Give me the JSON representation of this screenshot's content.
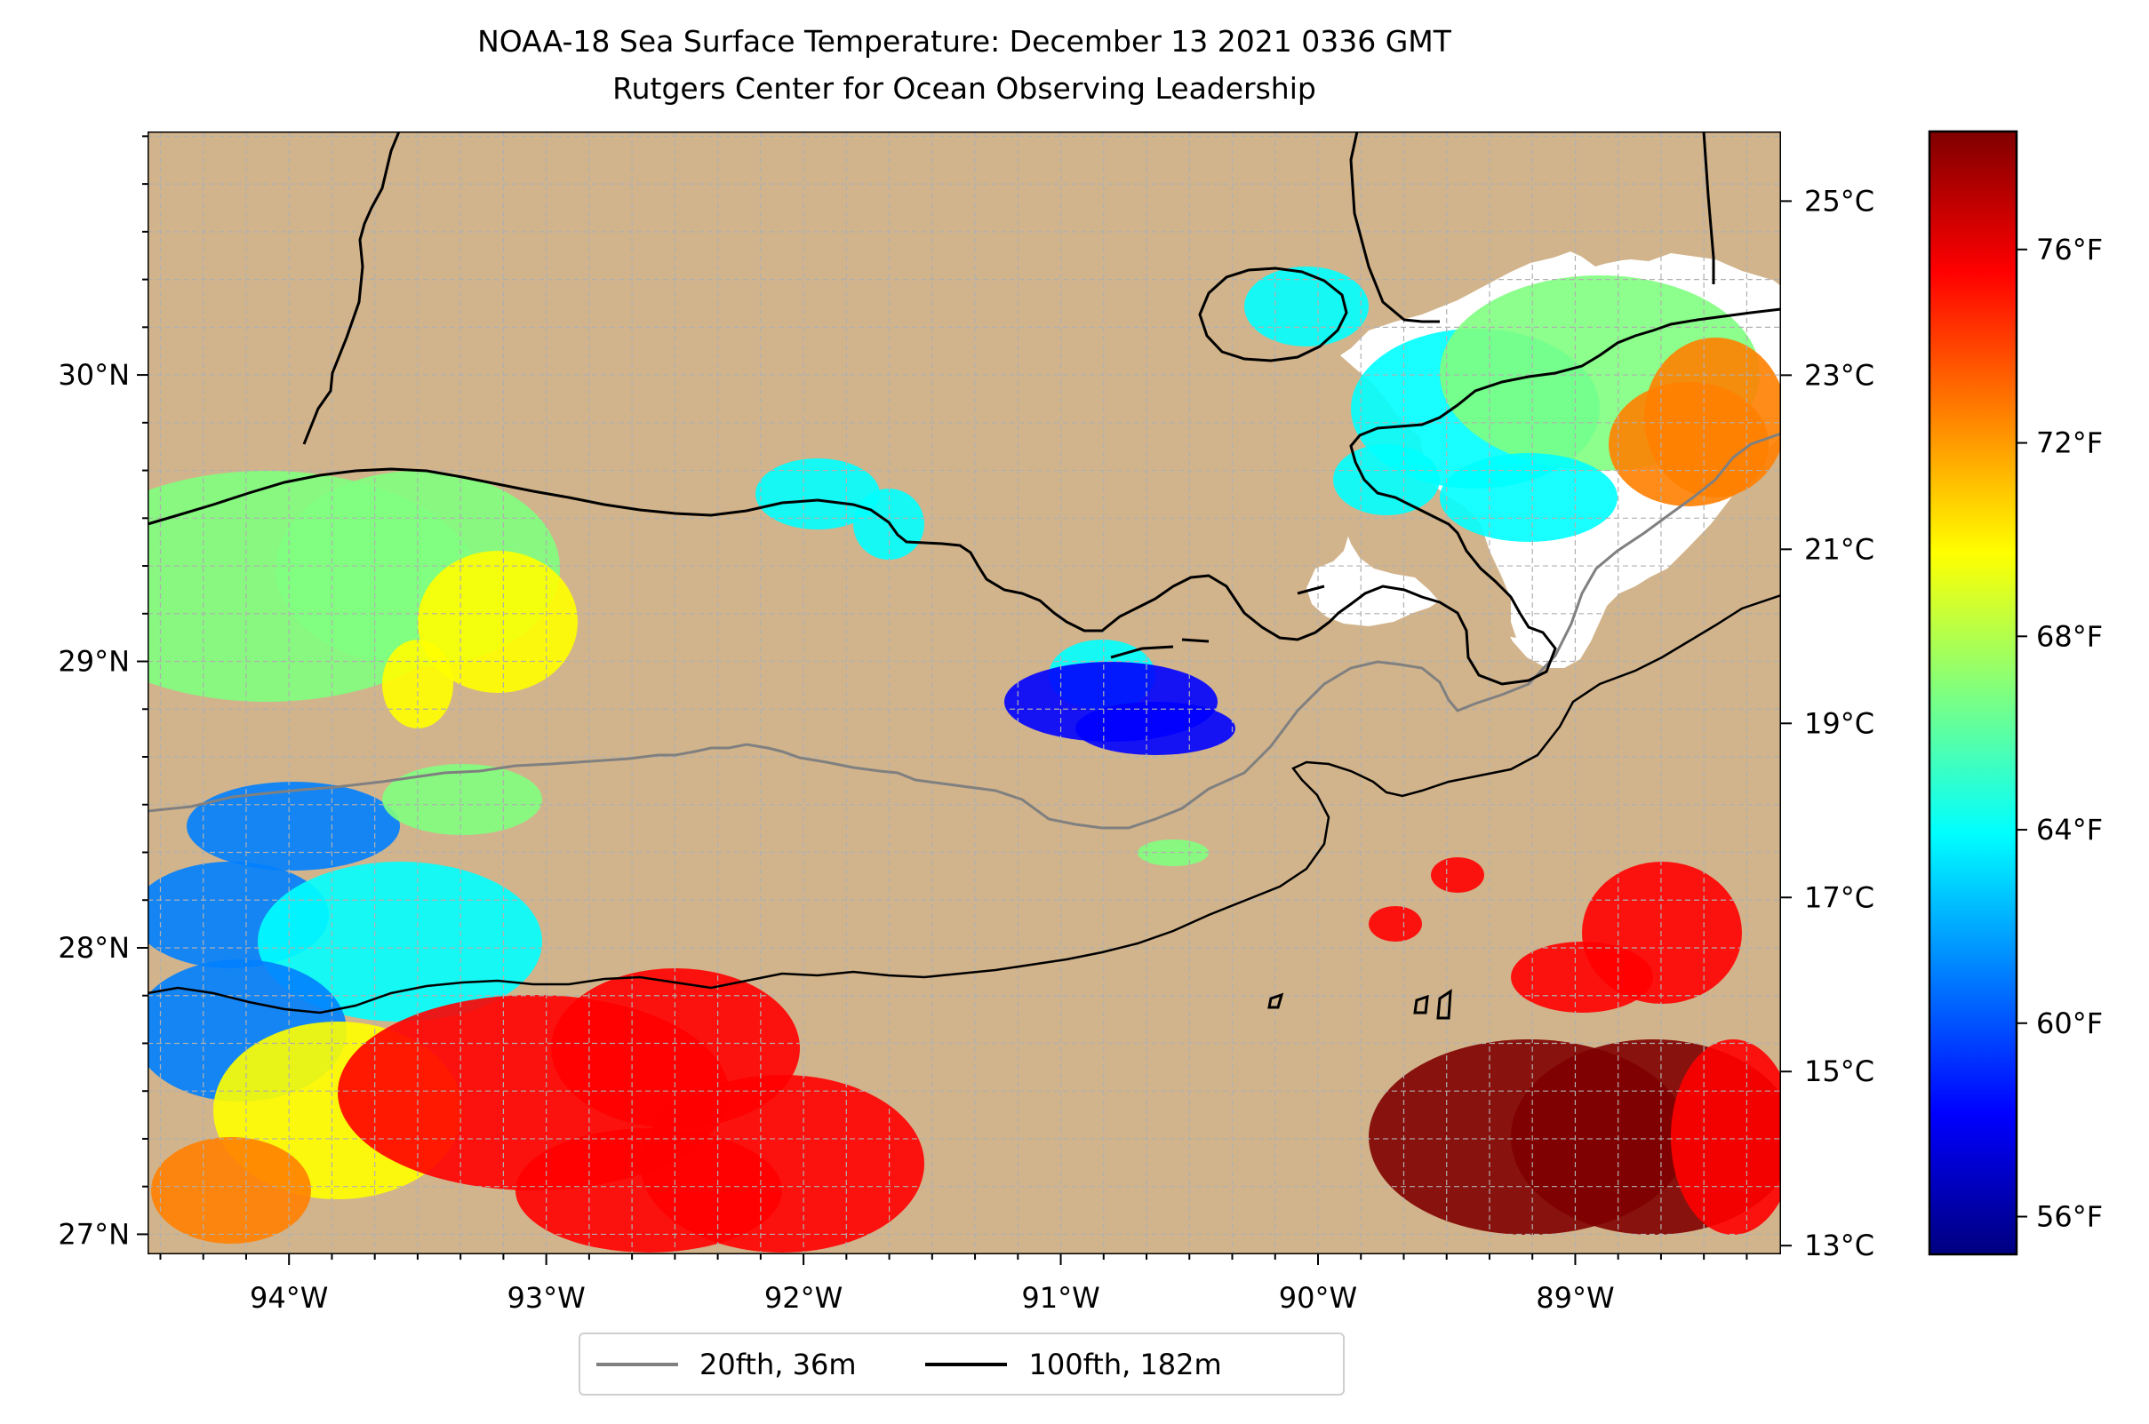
{
  "title": {
    "line1": "NOAA-18 Sea Surface Temperature: December 13 2021 0336 GMT",
    "line2": "Rutgers Center for Ocean Observing Leadership"
  },
  "colors": {
    "land": "#d2b48c",
    "ocean_nodata": "#ffffff",
    "grid": "#b0b0b0",
    "coast": "#000000",
    "isobath_20": "#808080",
    "isobath_100": "#000000"
  },
  "map": {
    "extent": {
      "lon": [
        -94.55,
        -88.2
      ],
      "lat": [
        26.93,
        30.85
      ]
    },
    "lon_ticks": [
      {
        "value": -94,
        "label": "94°W"
      },
      {
        "value": -93,
        "label": "93°W"
      },
      {
        "value": -92,
        "label": "92°W"
      },
      {
        "value": -91,
        "label": "91°W"
      },
      {
        "value": -90,
        "label": "90°W"
      },
      {
        "value": -89,
        "label": "89°W"
      }
    ],
    "lat_ticks": [
      {
        "value": 27,
        "label": "27°N"
      },
      {
        "value": 28,
        "label": "28°N"
      },
      {
        "value": 29,
        "label": "29°N"
      },
      {
        "value": 30,
        "label": "30°N"
      }
    ],
    "gridlines": true
  },
  "colorbar": {
    "celsius_range": [
      12.9,
      25.8
    ],
    "celsius_ticks": [
      {
        "value": 13,
        "label": "13°C"
      },
      {
        "value": 15,
        "label": "15°C"
      },
      {
        "value": 17,
        "label": "17°C"
      },
      {
        "value": 19,
        "label": "19°C"
      },
      {
        "value": 21,
        "label": "21°C"
      },
      {
        "value": 23,
        "label": "23°C"
      },
      {
        "value": 25,
        "label": "25°C"
      }
    ],
    "fahrenheit_ticks": [
      {
        "value": 56,
        "label": "56°F"
      },
      {
        "value": 60,
        "label": "60°F"
      },
      {
        "value": 64,
        "label": "64°F"
      },
      {
        "value": 68,
        "label": "68°F"
      },
      {
        "value": 72,
        "label": "72°F"
      },
      {
        "value": 76,
        "label": "76°F"
      }
    ],
    "colormap": "jet",
    "stops": [
      "#00007f",
      "#0000ff",
      "#007fff",
      "#00ffff",
      "#7fff7f",
      "#ffff00",
      "#ff7f00",
      "#ff0000",
      "#7f0000"
    ]
  },
  "legend": {
    "entries": [
      {
        "label": "20fth, 36m",
        "color": "#808080"
      },
      {
        "label": "100fth, 182m",
        "color": "#000000"
      }
    ]
  }
}
